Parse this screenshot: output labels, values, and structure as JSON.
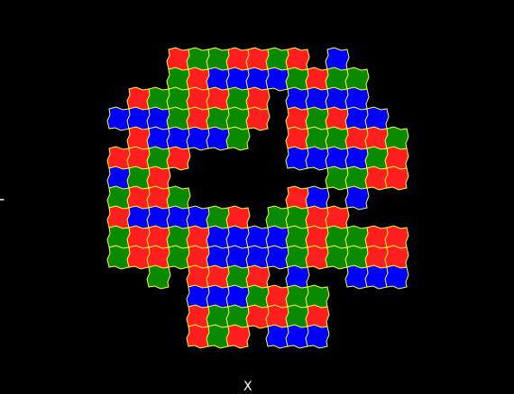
{
  "axes": {
    "x_label": "X",
    "y_label": "Y"
  },
  "colors": {
    "background": "#000000",
    "red": "#ff1f1f",
    "green": "#0a8a00",
    "blue": "#0000ff",
    "border": "#ffff33"
  },
  "legend": [],
  "region_color_sequence": [
    "red",
    "green",
    "blue",
    "red",
    "blue",
    "green",
    "red",
    "blue",
    "green",
    "blue",
    "red",
    "green"
  ]
}
